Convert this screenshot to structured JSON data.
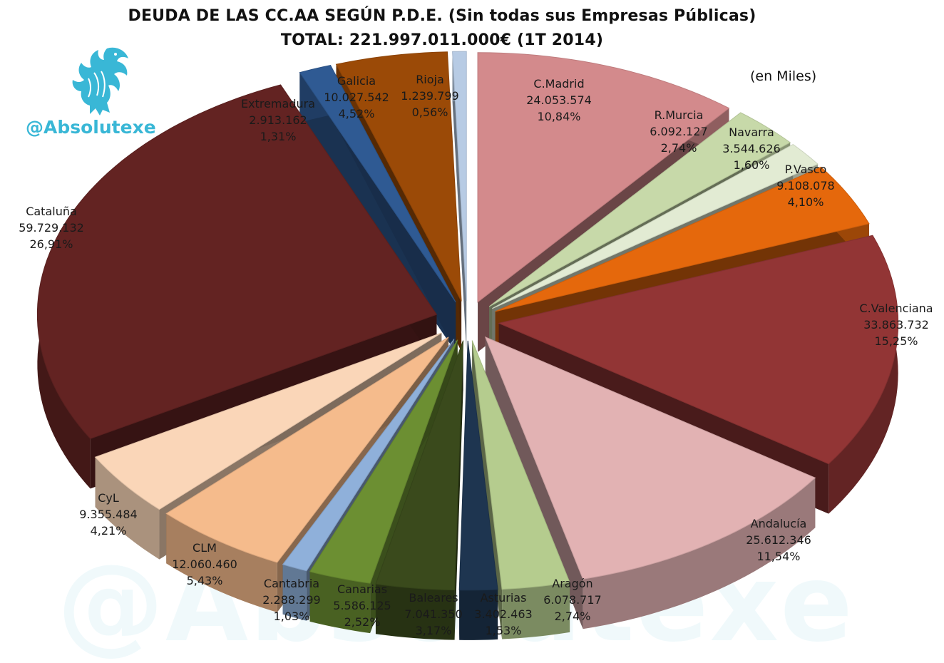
{
  "title": "DEUDA DE LAS CC.AA SEGÚN P.D.E. (Sin todas sus Empresas Públicas)",
  "subtitle": "TOTAL: 221.997.011.000€ (1T 2014)",
  "units": "(en Miles)",
  "brand": {
    "handle": "@Absolutexe",
    "icon": "griffin-logo-icon",
    "color": "#39b7d6"
  },
  "chart_data": {
    "type": "pie",
    "title": "DEUDA DE LAS CC.AA SEGÚN P.D.E. (Sin todas sus Empresas Públicas)",
    "exploded": true,
    "three_d": true,
    "slices": [
      {
        "label": "C.Madrid",
        "value": 24053574,
        "value_text": "24.053.574",
        "percent": "10,84%",
        "color": "#d38a8c"
      },
      {
        "label": "R.Murcia",
        "value": 6092127,
        "value_text": "6.092.127",
        "percent": "2,74%",
        "color": "#c7d9a9"
      },
      {
        "label": "Navarra",
        "value": 3544626,
        "value_text": "3.544.626",
        "percent": "1,60%",
        "color": "#e2ebd3"
      },
      {
        "label": "P.Vasco",
        "value": 9108078,
        "value_text": "9.108.078",
        "percent": "4,10%",
        "color": "#e5680c"
      },
      {
        "label": "C.Valenciana",
        "value": 33863732,
        "value_text": "33.863.732",
        "percent": "15,25%",
        "color": "#923535"
      },
      {
        "label": "Andalucía",
        "value": 25612346,
        "value_text": "25.612.346",
        "percent": "11,54%",
        "color": "#e2b2b3"
      },
      {
        "label": "Aragón",
        "value": 6078717,
        "value_text": "6.078.717",
        "percent": "2,74%",
        "color": "#b5cc8e"
      },
      {
        "label": "Asturias",
        "value": 3402463,
        "value_text": "3.402.463",
        "percent": "1,53%",
        "color": "#1e3550"
      },
      {
        "label": "Baleares",
        "value": 7041350,
        "value_text": "7.041.350",
        "percent": "3,17%",
        "color": "#3a4a1c"
      },
      {
        "label": "Canarias",
        "value": 5586125,
        "value_text": "5.586.125",
        "percent": "2,52%",
        "color": "#6c8f32"
      },
      {
        "label": "Cantabria",
        "value": 2288299,
        "value_text": "2.288.299",
        "percent": "1,03%",
        "color": "#8fb0da"
      },
      {
        "label": "CLM",
        "value": 12060460,
        "value_text": "12.060.460",
        "percent": "5,43%",
        "color": "#f5bb8c"
      },
      {
        "label": "CyL",
        "value": 9355484,
        "value_text": "9.355.484",
        "percent": "4,21%",
        "color": "#fad6b8"
      },
      {
        "label": "Cataluña",
        "value": 59729132,
        "value_text": "59.729.132",
        "percent": "26,91%",
        "color": "#632322"
      },
      {
        "label": "Extremadura",
        "value": 2913162,
        "value_text": "2.913.162",
        "percent": "1,31%",
        "color": "#2f5a93"
      },
      {
        "label": "Galicia",
        "value": 10027542,
        "value_text": "10.027.542",
        "percent": "4,52%",
        "color": "#9b4a07"
      },
      {
        "label": "Rioja",
        "value": 1239799,
        "value_text": "1.239.799",
        "percent": "0,56%",
        "color": "#b7cbe4"
      }
    ]
  }
}
